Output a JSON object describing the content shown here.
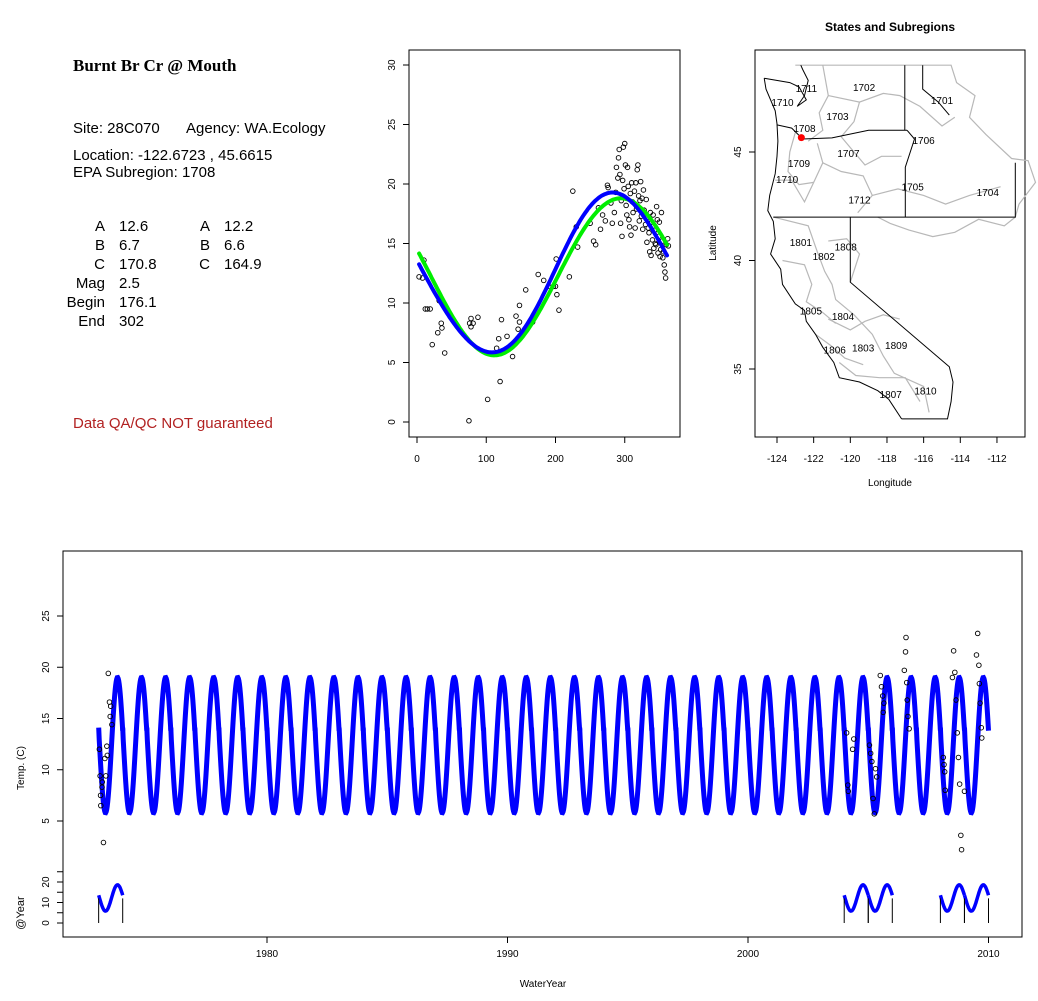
{
  "info_panel": {
    "title": "Burnt Br Cr @ Mouth",
    "site": "Site: 28C070",
    "agency": "Agency: WA.Ecology",
    "location": "Location: -122.6723 , 45.6615",
    "subregion": "EPA Subregion: 1708",
    "params_left": [
      {
        "label": "A",
        "value": "12.6"
      },
      {
        "label": "B",
        "value": "6.7"
      },
      {
        "label": "C",
        "value": "170.8"
      },
      {
        "label": "Mag",
        "value": "2.5"
      },
      {
        "label": "Begin",
        "value": "176.1"
      },
      {
        "label": "End",
        "value": "302"
      }
    ],
    "params_right": [
      {
        "label": "A",
        "value": "12.2"
      },
      {
        "label": "B",
        "value": "6.6"
      },
      {
        "label": "C",
        "value": "164.9"
      }
    ],
    "disclaimer": "Data QA/QC NOT guaranteed",
    "disclaimer_color": "#b22222"
  },
  "chart_data": [
    {
      "type": "scatter",
      "xlim": [
        0,
        365
      ],
      "ylim": [
        0,
        30
      ],
      "xticks": [
        "0",
        "100",
        "200",
        "300"
      ],
      "yticks": [
        "0",
        "5",
        "10",
        "15",
        "20",
        "25",
        "30"
      ],
      "grid": false,
      "fit_colors": {
        "green": "#00ee00",
        "blue": "#0000ff"
      },
      "points": [
        [
          3,
          12.2
        ],
        [
          8,
          12.1
        ],
        [
          10,
          13.6
        ],
        [
          12,
          9.5
        ],
        [
          15,
          9.5
        ],
        [
          19,
          9.5
        ],
        [
          22,
          6.5
        ],
        [
          30,
          7.5
        ],
        [
          32,
          10.2
        ],
        [
          35,
          8.3
        ],
        [
          36,
          7.9
        ],
        [
          40,
          5.8
        ],
        [
          75,
          0.1
        ],
        [
          76,
          8.3
        ],
        [
          78,
          8.7
        ],
        [
          78,
          8.0
        ],
        [
          81,
          8.3
        ],
        [
          88,
          8.8
        ],
        [
          102,
          1.9
        ],
        [
          115,
          6.2
        ],
        [
          118,
          7.0
        ],
        [
          120,
          3.4
        ],
        [
          122,
          8.6
        ],
        [
          130,
          7.2
        ],
        [
          138,
          5.5
        ],
        [
          143,
          8.9
        ],
        [
          146,
          7.8
        ],
        [
          148,
          9.8
        ],
        [
          148,
          8.4
        ],
        [
          157,
          11.1
        ],
        [
          167,
          8.4
        ],
        [
          175,
          12.4
        ],
        [
          183,
          11.9
        ],
        [
          190,
          11.4
        ],
        [
          197,
          11.4
        ],
        [
          200,
          11.4
        ],
        [
          201,
          13.7
        ],
        [
          202,
          10.7
        ],
        [
          205,
          9.4
        ],
        [
          220,
          12.2
        ],
        [
          225,
          19.4
        ],
        [
          230,
          16.4
        ],
        [
          232,
          14.7
        ],
        [
          250,
          16.7
        ],
        [
          255,
          15.2
        ],
        [
          258,
          14.9
        ],
        [
          262,
          18.0
        ],
        [
          265,
          16.2
        ],
        [
          268,
          17.4
        ],
        [
          272,
          16.9
        ],
        [
          275,
          19.9
        ],
        [
          276,
          19.7
        ],
        [
          280,
          18.4
        ],
        [
          282,
          16.7
        ],
        [
          285,
          17.6
        ],
        [
          287,
          19.3
        ],
        [
          288,
          21.4
        ],
        [
          290,
          20.5
        ],
        [
          291,
          22.2
        ],
        [
          292,
          22.9
        ],
        [
          293,
          20.8
        ],
        [
          294,
          16.7
        ],
        [
          295,
          18.6
        ],
        [
          296,
          15.6
        ],
        [
          297,
          20.3
        ],
        [
          298,
          23.1
        ],
        [
          299,
          19.6
        ],
        [
          300,
          23.4
        ],
        [
          301,
          21.6
        ],
        [
          302,
          18.2
        ],
        [
          303,
          17.4
        ],
        [
          304,
          21.4
        ],
        [
          305,
          19.8
        ],
        [
          306,
          17.0
        ],
        [
          307,
          16.4
        ],
        [
          308,
          19.2
        ],
        [
          309,
          15.7
        ],
        [
          310,
          20.1
        ],
        [
          311,
          18.5
        ],
        [
          312,
          17.6
        ],
        [
          314,
          19.4
        ],
        [
          315,
          16.3
        ],
        [
          316,
          20.1
        ],
        [
          317,
          17.9
        ],
        [
          318,
          21.2
        ],
        [
          319,
          21.6
        ],
        [
          320,
          19.0
        ],
        [
          321,
          16.9
        ],
        [
          322,
          18.6
        ],
        [
          323,
          20.2
        ],
        [
          324,
          17.3
        ],
        [
          325,
          18.8
        ],
        [
          326,
          16.2
        ],
        [
          327,
          19.5
        ],
        [
          328,
          17.8
        ],
        [
          330,
          16.6
        ],
        [
          331,
          18.7
        ],
        [
          332,
          15.1
        ],
        [
          333,
          17.2
        ],
        [
          334,
          16.3
        ],
        [
          335,
          15.9
        ],
        [
          336,
          14.3
        ],
        [
          337,
          17.6
        ],
        [
          338,
          14.0
        ],
        [
          339,
          16.8
        ],
        [
          340,
          15.3
        ],
        [
          341,
          17.4
        ],
        [
          342,
          14.6
        ],
        [
          343,
          16.1
        ],
        [
          344,
          15.0
        ],
        [
          345,
          14.9
        ],
        [
          346,
          18.1
        ],
        [
          347,
          17.0
        ],
        [
          348,
          14.2
        ],
        [
          349,
          15.6
        ],
        [
          350,
          16.8
        ],
        [
          351,
          13.9
        ],
        [
          352,
          14.5
        ],
        [
          353,
          17.6
        ],
        [
          354,
          15.2
        ],
        [
          355,
          13.8
        ],
        [
          356,
          14.3
        ],
        [
          357,
          13.2
        ],
        [
          358,
          12.6
        ],
        [
          359,
          12.1
        ],
        [
          360,
          14.9
        ],
        [
          362,
          15.4
        ],
        [
          363,
          14.8
        ]
      ]
    },
    {
      "type": "map",
      "title": "States and Subregions",
      "xlabel": "Longitude",
      "ylabel": "Latitude",
      "xticks": [
        "-124",
        "-122",
        "-120",
        "-118",
        "-116",
        "-114",
        "-112"
      ],
      "yticks": [
        "35",
        "40",
        "45"
      ],
      "site": {
        "lon": -122.6723,
        "lat": 45.6615,
        "color": "#ff0000"
      },
      "subregion_labels": [
        "1711",
        "1702",
        "1701",
        "1710",
        "1703",
        "1708",
        "1706",
        "1707",
        "1709",
        "1710",
        "1705",
        "1704",
        "1712",
        "1801",
        "1808",
        "1802",
        "1805",
        "1804",
        "1806",
        "1803",
        "1809",
        "1807",
        "1810"
      ]
    },
    {
      "type": "line",
      "xlabel": "WaterYear",
      "ylabel": "Temp. (C)",
      "ylabel2": "@Year",
      "xticks": [
        "1980",
        "1990",
        "2000",
        "2010"
      ],
      "yticks": [
        "5",
        "10",
        "15",
        "20",
        "25"
      ],
      "yticks2": [
        "0",
        "10",
        "20"
      ],
      "fit_range": [
        1973,
        2010
      ],
      "fit_color": "#0000ff",
      "year_fit_years": [
        1973,
        2004,
        2005,
        2008,
        2009
      ],
      "observations": [
        [
          1973.03,
          12.0
        ],
        [
          1973.06,
          9.4
        ],
        [
          1973.08,
          7.5
        ],
        [
          1973.09,
          6.5
        ],
        [
          1973.14,
          8.3
        ],
        [
          1973.15,
          8.8
        ],
        [
          1973.2,
          2.9
        ],
        [
          1973.26,
          11.1
        ],
        [
          1973.3,
          9.4
        ],
        [
          1973.34,
          12.3
        ],
        [
          1973.36,
          11.4
        ],
        [
          1973.4,
          19.4
        ],
        [
          1973.45,
          16.6
        ],
        [
          1973.48,
          15.2
        ],
        [
          1973.5,
          16.2
        ],
        [
          1973.55,
          14.4
        ],
        [
          2004.1,
          13.6
        ],
        [
          2004.15,
          8.5
        ],
        [
          2004.17,
          7.9
        ],
        [
          2004.35,
          12.0
        ],
        [
          2004.4,
          13.0
        ],
        [
          2005.05,
          12.4
        ],
        [
          2005.1,
          11.6
        ],
        [
          2005.15,
          10.8
        ],
        [
          2005.2,
          7.2
        ],
        [
          2005.25,
          5.7
        ],
        [
          2005.3,
          10.1
        ],
        [
          2005.35,
          9.3
        ],
        [
          2005.5,
          19.2
        ],
        [
          2005.55,
          18.1
        ],
        [
          2005.6,
          17.2
        ],
        [
          2005.62,
          15.6
        ],
        [
          2005.65,
          16.5
        ],
        [
          2006.5,
          19.7
        ],
        [
          2006.55,
          21.5
        ],
        [
          2006.57,
          22.9
        ],
        [
          2006.6,
          18.5
        ],
        [
          2006.62,
          16.8
        ],
        [
          2006.65,
          15.2
        ],
        [
          2006.7,
          14.0
        ],
        [
          2008.12,
          11.2
        ],
        [
          2008.15,
          10.5
        ],
        [
          2008.18,
          9.8
        ],
        [
          2008.2,
          8.0
        ],
        [
          2008.5,
          19.0
        ],
        [
          2008.55,
          21.6
        ],
        [
          2008.6,
          19.5
        ],
        [
          2008.65,
          16.8
        ],
        [
          2008.7,
          13.6
        ],
        [
          2008.75,
          11.2
        ],
        [
          2008.8,
          8.6
        ],
        [
          2008.85,
          3.6
        ],
        [
          2008.88,
          2.2
        ],
        [
          2009.0,
          7.9
        ],
        [
          2009.5,
          21.2
        ],
        [
          2009.55,
          23.3
        ],
        [
          2009.6,
          20.2
        ],
        [
          2009.62,
          18.4
        ],
        [
          2009.65,
          16.5
        ],
        [
          2009.7,
          14.1
        ],
        [
          2009.72,
          13.1
        ]
      ]
    }
  ]
}
